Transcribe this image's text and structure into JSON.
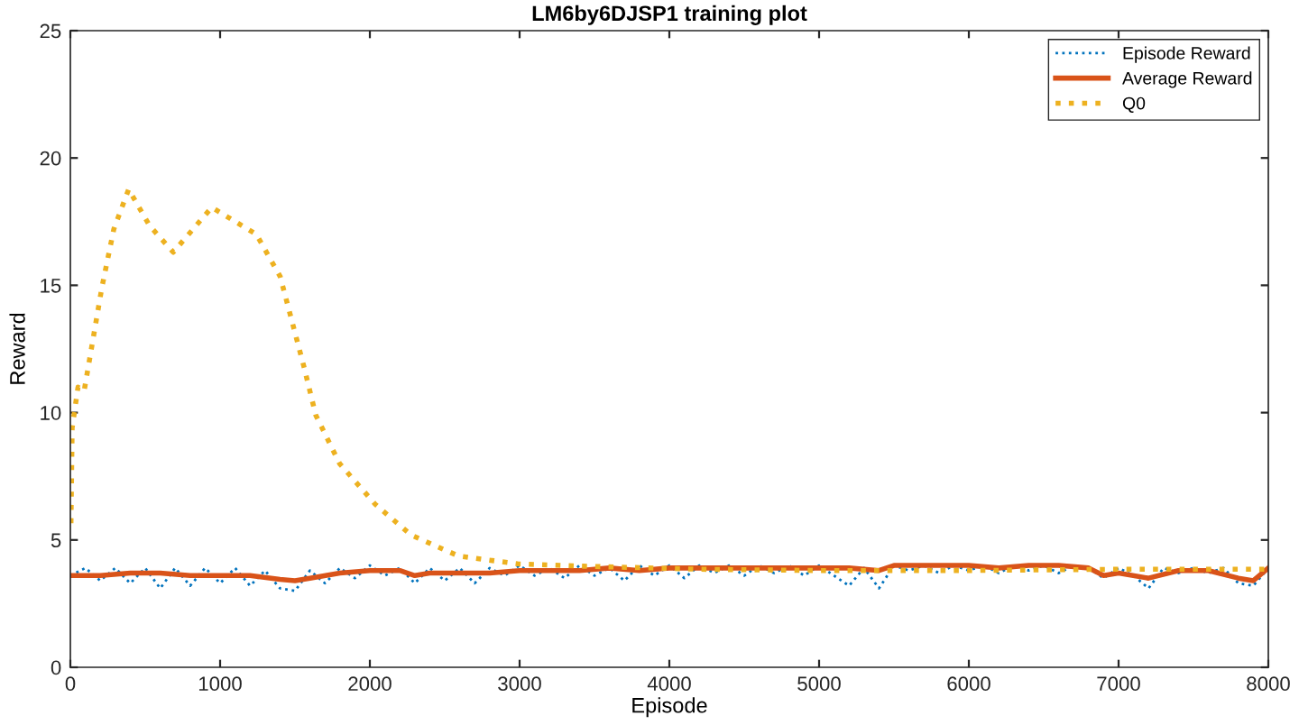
{
  "chart_data": {
    "type": "line",
    "title": "LM6by6DJSP1 training plot",
    "xlabel": "Episode",
    "ylabel": "Reward",
    "xlim": [
      0,
      8000
    ],
    "ylim": [
      0,
      25
    ],
    "xticks": [
      0,
      1000,
      2000,
      3000,
      4000,
      5000,
      6000,
      7000,
      8000
    ],
    "yticks": [
      0,
      5,
      10,
      15,
      20,
      25
    ],
    "grid": false,
    "legend": "top right",
    "series": [
      {
        "name": "Episode Reward",
        "color": "#0072bd",
        "line_style": "dotted",
        "x": [
          0,
          100,
          200,
          300,
          400,
          500,
          600,
          700,
          800,
          900,
          1000,
          1100,
          1200,
          1300,
          1400,
          1500,
          1600,
          1700,
          1800,
          1900,
          2000,
          2100,
          2200,
          2300,
          2400,
          2500,
          2600,
          2700,
          2800,
          2900,
          3000,
          3100,
          3200,
          3300,
          3400,
          3500,
          3600,
          3700,
          3800,
          3900,
          4000,
          4100,
          4200,
          4300,
          4400,
          4500,
          4600,
          4700,
          4800,
          4900,
          5000,
          5100,
          5200,
          5300,
          5400,
          5500,
          5600,
          5700,
          5800,
          5900,
          6000,
          6100,
          6200,
          6300,
          6400,
          6500,
          6600,
          6700,
          6800,
          6900,
          7000,
          7100,
          7200,
          7300,
          7400,
          7500,
          7600,
          7700,
          7800,
          7900,
          8000
        ],
        "values": [
          3.6,
          3.9,
          3.4,
          3.9,
          3.3,
          3.9,
          3.1,
          3.9,
          3.2,
          3.9,
          3.3,
          3.9,
          3.2,
          3.8,
          3.1,
          3.0,
          3.8,
          3.3,
          3.9,
          3.5,
          4.0,
          3.6,
          3.9,
          3.3,
          3.9,
          3.4,
          3.9,
          3.3,
          3.9,
          3.6,
          4.0,
          3.6,
          3.9,
          3.5,
          4.0,
          3.6,
          3.9,
          3.4,
          4.0,
          3.6,
          4.0,
          3.5,
          4.0,
          3.7,
          4.0,
          3.6,
          4.0,
          3.7,
          4.0,
          3.6,
          4.0,
          3.6,
          3.2,
          3.9,
          3.1,
          4.0,
          3.8,
          4.0,
          3.7,
          4.0,
          3.8,
          4.0,
          3.7,
          4.0,
          3.8,
          4.0,
          3.7,
          4.0,
          3.9,
          3.5,
          3.9,
          3.6,
          3.1,
          3.9,
          3.7,
          3.9,
          3.7,
          3.9,
          3.3,
          3.2,
          3.9
        ]
      },
      {
        "name": "Average Reward",
        "color": "#d95319",
        "line_style": "solid",
        "x": [
          0,
          200,
          400,
          600,
          800,
          1000,
          1200,
          1400,
          1500,
          1600,
          1800,
          2000,
          2200,
          2300,
          2400,
          2600,
          2800,
          3000,
          3200,
          3400,
          3600,
          3800,
          4000,
          4200,
          4400,
          4600,
          4800,
          5000,
          5200,
          5400,
          5500,
          5800,
          6000,
          6200,
          6400,
          6600,
          6800,
          6900,
          7000,
          7200,
          7400,
          7600,
          7800,
          7900,
          8000
        ],
        "values": [
          3.6,
          3.6,
          3.7,
          3.7,
          3.6,
          3.6,
          3.6,
          3.45,
          3.4,
          3.5,
          3.7,
          3.8,
          3.8,
          3.6,
          3.7,
          3.7,
          3.7,
          3.8,
          3.8,
          3.8,
          3.9,
          3.8,
          3.9,
          3.9,
          3.9,
          3.9,
          3.9,
          3.9,
          3.9,
          3.8,
          4.0,
          4.0,
          4.0,
          3.9,
          4.0,
          4.0,
          3.9,
          3.6,
          3.7,
          3.5,
          3.8,
          3.8,
          3.5,
          3.4,
          3.9
        ]
      },
      {
        "name": "Q0",
        "color": "#edb120",
        "line_style": "dotted",
        "x": [
          4,
          12,
          51,
          92,
          210,
          290,
          389,
          528,
          687,
          944,
          1242,
          1401,
          1560,
          1639,
          1798,
          2036,
          2274,
          2592,
          2988,
          3425,
          4200,
          5000,
          6000,
          7000,
          8000
        ],
        "values": [
          5.66,
          9.4,
          11.0,
          10.85,
          14.9,
          17.2,
          18.77,
          17.35,
          16.3,
          18.06,
          17.0,
          15.35,
          11.8,
          9.9,
          8.0,
          6.4,
          5.2,
          4.37,
          4.06,
          3.97,
          3.85,
          3.8,
          3.8,
          3.85,
          3.85
        ]
      }
    ]
  }
}
